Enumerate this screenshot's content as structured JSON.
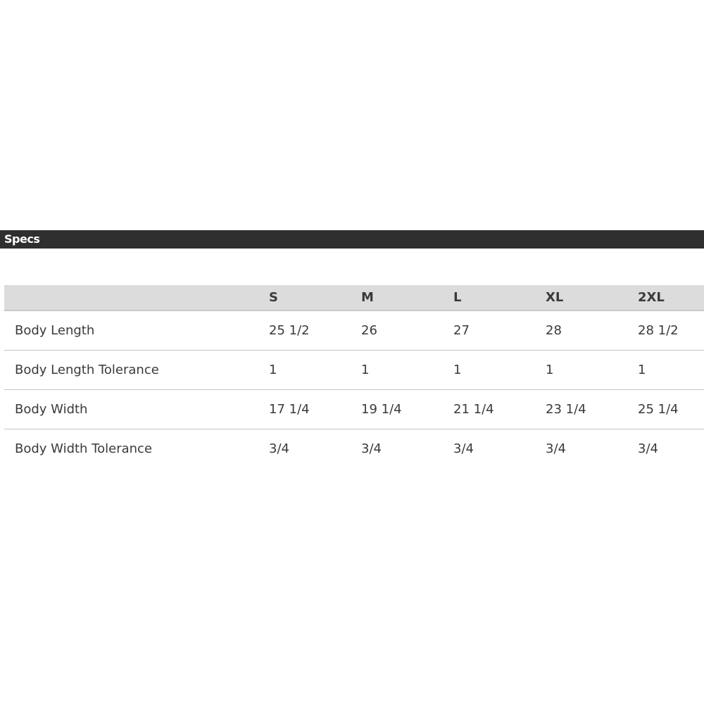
{
  "section_title": "Specs",
  "table": {
    "columns": [
      "",
      "S",
      "M",
      "L",
      "XL",
      "2XL"
    ],
    "rows": [
      {
        "label": "Body Length",
        "values": [
          "25 1/2",
          "26",
          "27",
          "28",
          "28 1/2"
        ]
      },
      {
        "label": "Body Length Tolerance",
        "values": [
          "1",
          "1",
          "1",
          "1",
          "1"
        ]
      },
      {
        "label": "Body Width",
        "values": [
          "17 1/4",
          "19 1/4",
          "21 1/4",
          "23 1/4",
          "25 1/4"
        ]
      },
      {
        "label": "Body Width Tolerance",
        "values": [
          "3/4",
          "3/4",
          "3/4",
          "3/4",
          "3/4"
        ]
      }
    ]
  }
}
